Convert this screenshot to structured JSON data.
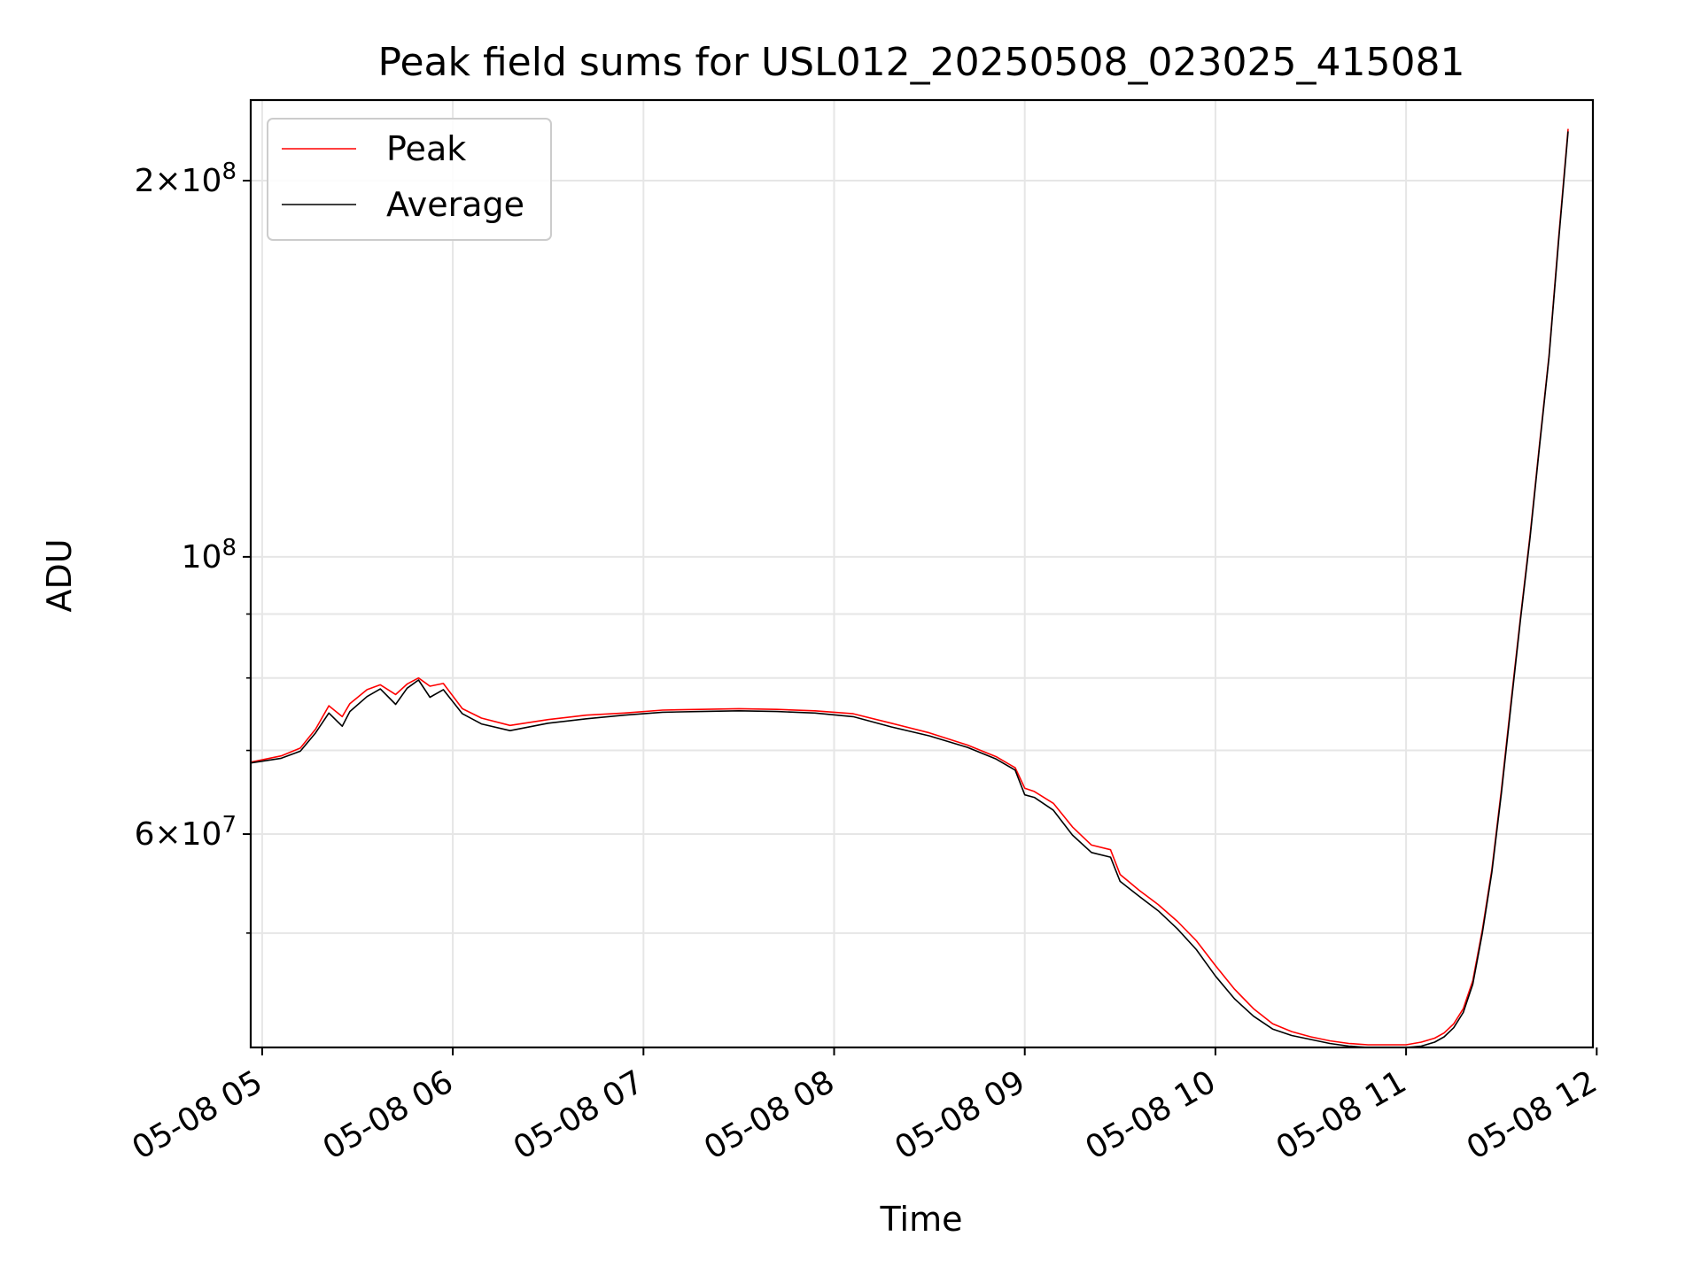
{
  "chart_data": {
    "type": "line",
    "title": "Peak field sums for USL012_20250508_023025_415081",
    "xlabel": "Time",
    "ylabel": "ADU",
    "y_scale": "log",
    "x_unit": "hours since 2025-05-08 00:00",
    "xlim": [
      4.94,
      11.98
    ],
    "ylim": [
      40500000,
      232000000
    ],
    "grid": true,
    "legend_position": "top-left",
    "x_ticks": [
      {
        "value": 5,
        "label": "05-08 05"
      },
      {
        "value": 6,
        "label": "05-08 06"
      },
      {
        "value": 7,
        "label": "05-08 07"
      },
      {
        "value": 8,
        "label": "05-08 08"
      },
      {
        "value": 9,
        "label": "05-08 09"
      },
      {
        "value": 10,
        "label": "05-08 10"
      },
      {
        "value": 11,
        "label": "05-08 11"
      },
      {
        "value": 12,
        "label": "05-08 12"
      }
    ],
    "y_major_ticks": [
      {
        "value": 60000000,
        "mantissa": "6",
        "exponent": "7"
      },
      {
        "value": 100000000,
        "mantissa": "",
        "exponent": "8"
      },
      {
        "value": 200000000,
        "mantissa": "2",
        "exponent": "8"
      }
    ],
    "y_minor_ticks": [
      50000000,
      70000000,
      80000000,
      90000000
    ],
    "series": [
      {
        "name": "Peak",
        "color": "#ff0000",
        "x": [
          4.94,
          5.1,
          5.2,
          5.28,
          5.35,
          5.42,
          5.46,
          5.55,
          5.62,
          5.7,
          5.76,
          5.82,
          5.88,
          5.95,
          6.05,
          6.15,
          6.3,
          6.5,
          6.7,
          6.9,
          7.1,
          7.3,
          7.5,
          7.7,
          7.9,
          8.1,
          8.3,
          8.5,
          8.7,
          8.85,
          8.95,
          9.0,
          9.05,
          9.15,
          9.25,
          9.35,
          9.45,
          9.5,
          9.6,
          9.7,
          9.8,
          9.9,
          10.0,
          10.1,
          10.2,
          10.3,
          10.4,
          10.5,
          10.6,
          10.7,
          10.8,
          10.9,
          11.0,
          11.08,
          11.15,
          11.2,
          11.25,
          11.3,
          11.35,
          11.4,
          11.45,
          11.5,
          11.55,
          11.6,
          11.65,
          11.7,
          11.75,
          11.8,
          11.85
        ],
        "y": [
          68500000,
          69300000,
          70300000,
          72800000,
          76000000,
          74500000,
          76300000,
          78300000,
          79000000,
          77600000,
          79100000,
          80000000,
          78800000,
          79200000,
          75600000,
          74300000,
          73300000,
          74100000,
          74700000,
          75000000,
          75400000,
          75500000,
          75600000,
          75500000,
          75300000,
          74900000,
          73600000,
          72300000,
          70700000,
          69200000,
          67800000,
          65300000,
          64900000,
          63500000,
          60800000,
          58800000,
          58300000,
          55700000,
          54100000,
          52700000,
          51100000,
          49300000,
          47100000,
          45100000,
          43500000,
          42300000,
          41700000,
          41300000,
          41000000,
          40800000,
          40700000,
          40700000,
          40700000,
          40900000,
          41200000,
          41600000,
          42300000,
          43500000,
          45800000,
          50300000,
          56200000,
          65100000,
          76500000,
          89400000,
          104000000,
          123000000,
          145000000,
          180000000,
          220000000
        ]
      },
      {
        "name": "Average",
        "color": "#000000",
        "x": [
          4.94,
          5.1,
          5.2,
          5.28,
          5.35,
          5.42,
          5.46,
          5.55,
          5.62,
          5.7,
          5.76,
          5.82,
          5.88,
          5.95,
          6.05,
          6.15,
          6.3,
          6.5,
          6.7,
          6.9,
          7.1,
          7.3,
          7.5,
          7.7,
          7.9,
          8.1,
          8.3,
          8.5,
          8.7,
          8.85,
          8.95,
          9.0,
          9.05,
          9.15,
          9.25,
          9.35,
          9.45,
          9.5,
          9.6,
          9.7,
          9.8,
          9.9,
          10.0,
          10.1,
          10.2,
          10.3,
          10.4,
          10.5,
          10.6,
          10.7,
          10.8,
          10.9,
          11.0,
          11.08,
          11.15,
          11.2,
          11.25,
          11.3,
          11.35,
          11.4,
          11.45,
          11.5,
          11.55,
          11.6,
          11.65,
          11.7,
          11.75,
          11.8,
          11.85
        ],
        "y": [
          68400000,
          69000000,
          69900000,
          72300000,
          75000000,
          73200000,
          75200000,
          77300000,
          78400000,
          76200000,
          78500000,
          79700000,
          77200000,
          78300000,
          74900000,
          73500000,
          72600000,
          73600000,
          74200000,
          74700000,
          75100000,
          75200000,
          75300000,
          75200000,
          75000000,
          74500000,
          73100000,
          71900000,
          70400000,
          68900000,
          67500000,
          64500000,
          64200000,
          62700000,
          59900000,
          58000000,
          57500000,
          55000000,
          53500000,
          52100000,
          50400000,
          48500000,
          46200000,
          44300000,
          42900000,
          41900000,
          41400000,
          41100000,
          40800000,
          40600000,
          40500000,
          40500000,
          40500000,
          40600000,
          40900000,
          41300000,
          42000000,
          43200000,
          45500000,
          50000000,
          55900000,
          64700000,
          76000000,
          89000000,
          103500000,
          122500000,
          144500000,
          179000000,
          219000000
        ]
      }
    ]
  }
}
